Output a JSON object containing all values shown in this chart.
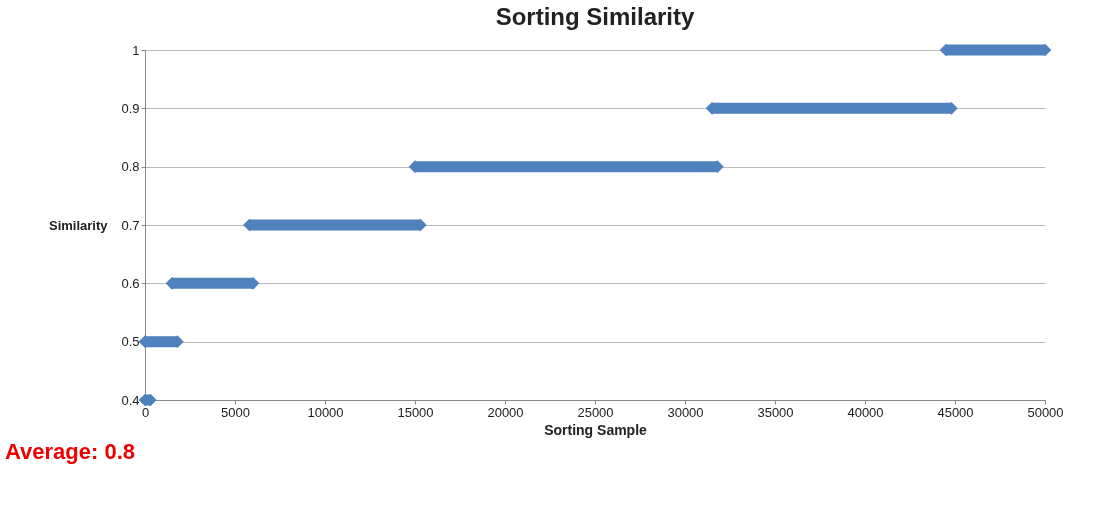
{
  "chart_data": {
    "type": "line",
    "title": "Sorting Similarity",
    "xlabel": "Sorting Sample",
    "ylabel": "Similarity",
    "xlim": [
      0,
      50000
    ],
    "xticks": [
      0,
      5000,
      10000,
      15000,
      20000,
      25000,
      30000,
      35000,
      40000,
      45000,
      50000
    ],
    "ylim": [
      0.4,
      1
    ],
    "yticks": [
      0.4,
      0.5,
      0.6,
      0.7,
      0.8,
      0.9,
      1
    ],
    "grid": "y",
    "marker": "diamond",
    "line_style": "solid",
    "annotations": [
      "Average: 0.8"
    ],
    "series": [
      {
        "color": "#4f81bd",
        "x": [
          0,
          300
        ],
        "values": [
          0.4,
          0.4
        ]
      },
      {
        "color": "#4f81bd",
        "x": [
          0,
          1800
        ],
        "values": [
          0.5,
          0.5
        ]
      },
      {
        "color": "#4f81bd",
        "x": [
          1500,
          6000
        ],
        "values": [
          0.6,
          0.6
        ]
      },
      {
        "color": "#4f81bd",
        "x": [
          5800,
          15300
        ],
        "values": [
          0.7,
          0.7
        ]
      },
      {
        "color": "#4f81bd",
        "x": [
          15000,
          31800
        ],
        "values": [
          0.8,
          0.8
        ]
      },
      {
        "color": "#4f81bd",
        "x": [
          31500,
          44800
        ],
        "values": [
          0.9,
          0.9
        ]
      },
      {
        "color": "#4f81bd",
        "x": [
          44500,
          50000
        ],
        "values": [
          1,
          1
        ]
      }
    ]
  }
}
